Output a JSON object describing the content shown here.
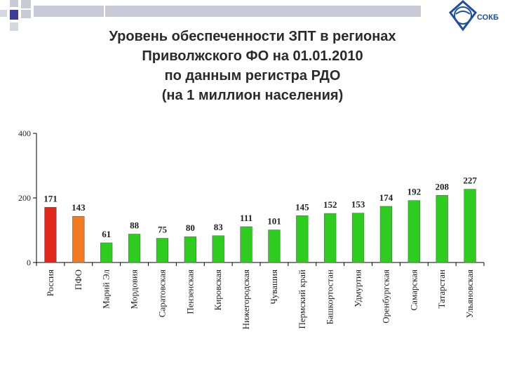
{
  "title": {
    "lines": [
      "Уровень обеспеченности ЗПТ в регионах",
      "Приволжского ФО на 01.01.2010",
      "по данным регистра РДО",
      "(на 1 миллион населения)"
    ]
  },
  "logo": {
    "text": "СОКБ"
  },
  "colors": {
    "russia": "#e3261c",
    "pfo": "#f07b22",
    "region": "#2ecc1f",
    "text": "#2a2a2a"
  },
  "chart_data": {
    "type": "bar",
    "title": "Уровень обеспеченности ЗПТ в регионах Приволжского ФО на 01.01.2010 по данным регистра РДО (на 1 миллион населения)",
    "categories": [
      "Россия",
      "ПФО",
      "Марий Эл",
      "Мордовия",
      "Саратовская",
      "Пензенская",
      "Кировская",
      "Нижегородская",
      "Чувашия",
      "Пермский край",
      "Башкортостан",
      "Удмуртия",
      "Оренбургская",
      "Самарская",
      "Татарстан",
      "Ульяновская"
    ],
    "values": [
      171,
      143,
      61,
      88,
      75,
      80,
      83,
      111,
      101,
      145,
      152,
      153,
      174,
      192,
      208,
      227
    ],
    "bar_colors": [
      "#e3261c",
      "#f07b22",
      "#2ecc1f",
      "#2ecc1f",
      "#2ecc1f",
      "#2ecc1f",
      "#2ecc1f",
      "#2ecc1f",
      "#2ecc1f",
      "#2ecc1f",
      "#2ecc1f",
      "#2ecc1f",
      "#2ecc1f",
      "#2ecc1f",
      "#2ecc1f",
      "#2ecc1f"
    ],
    "ylim": [
      0,
      400
    ],
    "yticks": [
      "0",
      "200",
      "400"
    ],
    "xlabel": "",
    "ylabel": "",
    "grid": false,
    "data_labels": true
  }
}
